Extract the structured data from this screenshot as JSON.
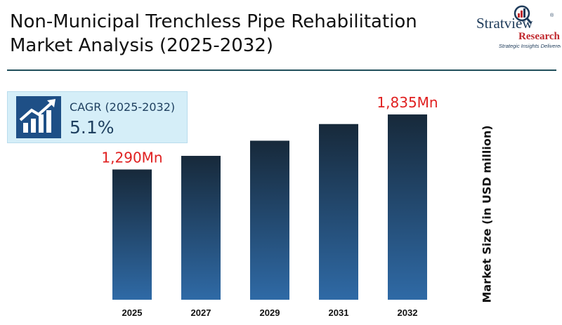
{
  "header": {
    "title": "Non-Municipal Trenchless Pipe Rehabilitation Market Analysis (2025-2032)"
  },
  "brand": {
    "name_part1": "Stratview",
    "name_part2": "Research",
    "tagline": "Strategic Insights Delivered",
    "registered_mark": "®",
    "icon": "magnifier-chart-icon",
    "color_dark": "#1e3b5a",
    "color_accent": "#c0282d"
  },
  "cagr": {
    "label": "CAGR (2025-2032)",
    "value": "5.1%",
    "icon": "growth-chart-icon"
  },
  "colors": {
    "bar_top": "#17293a",
    "bar_bottom": "#2f6aa6",
    "value_label": "#e02020"
  },
  "chart_data": {
    "type": "bar",
    "categories": [
      "2025",
      "2027",
      "2029",
      "2031",
      "2032"
    ],
    "values": [
      1290,
      1425,
      1575,
      1740,
      1835
    ],
    "data_labels": [
      "1,290Mn",
      "",
      "",
      "",
      "1,835Mn"
    ],
    "ylabel": "Market Size (in USD million)",
    "ylim": [
      0,
      1900
    ],
    "grid": false,
    "legend": "none"
  }
}
